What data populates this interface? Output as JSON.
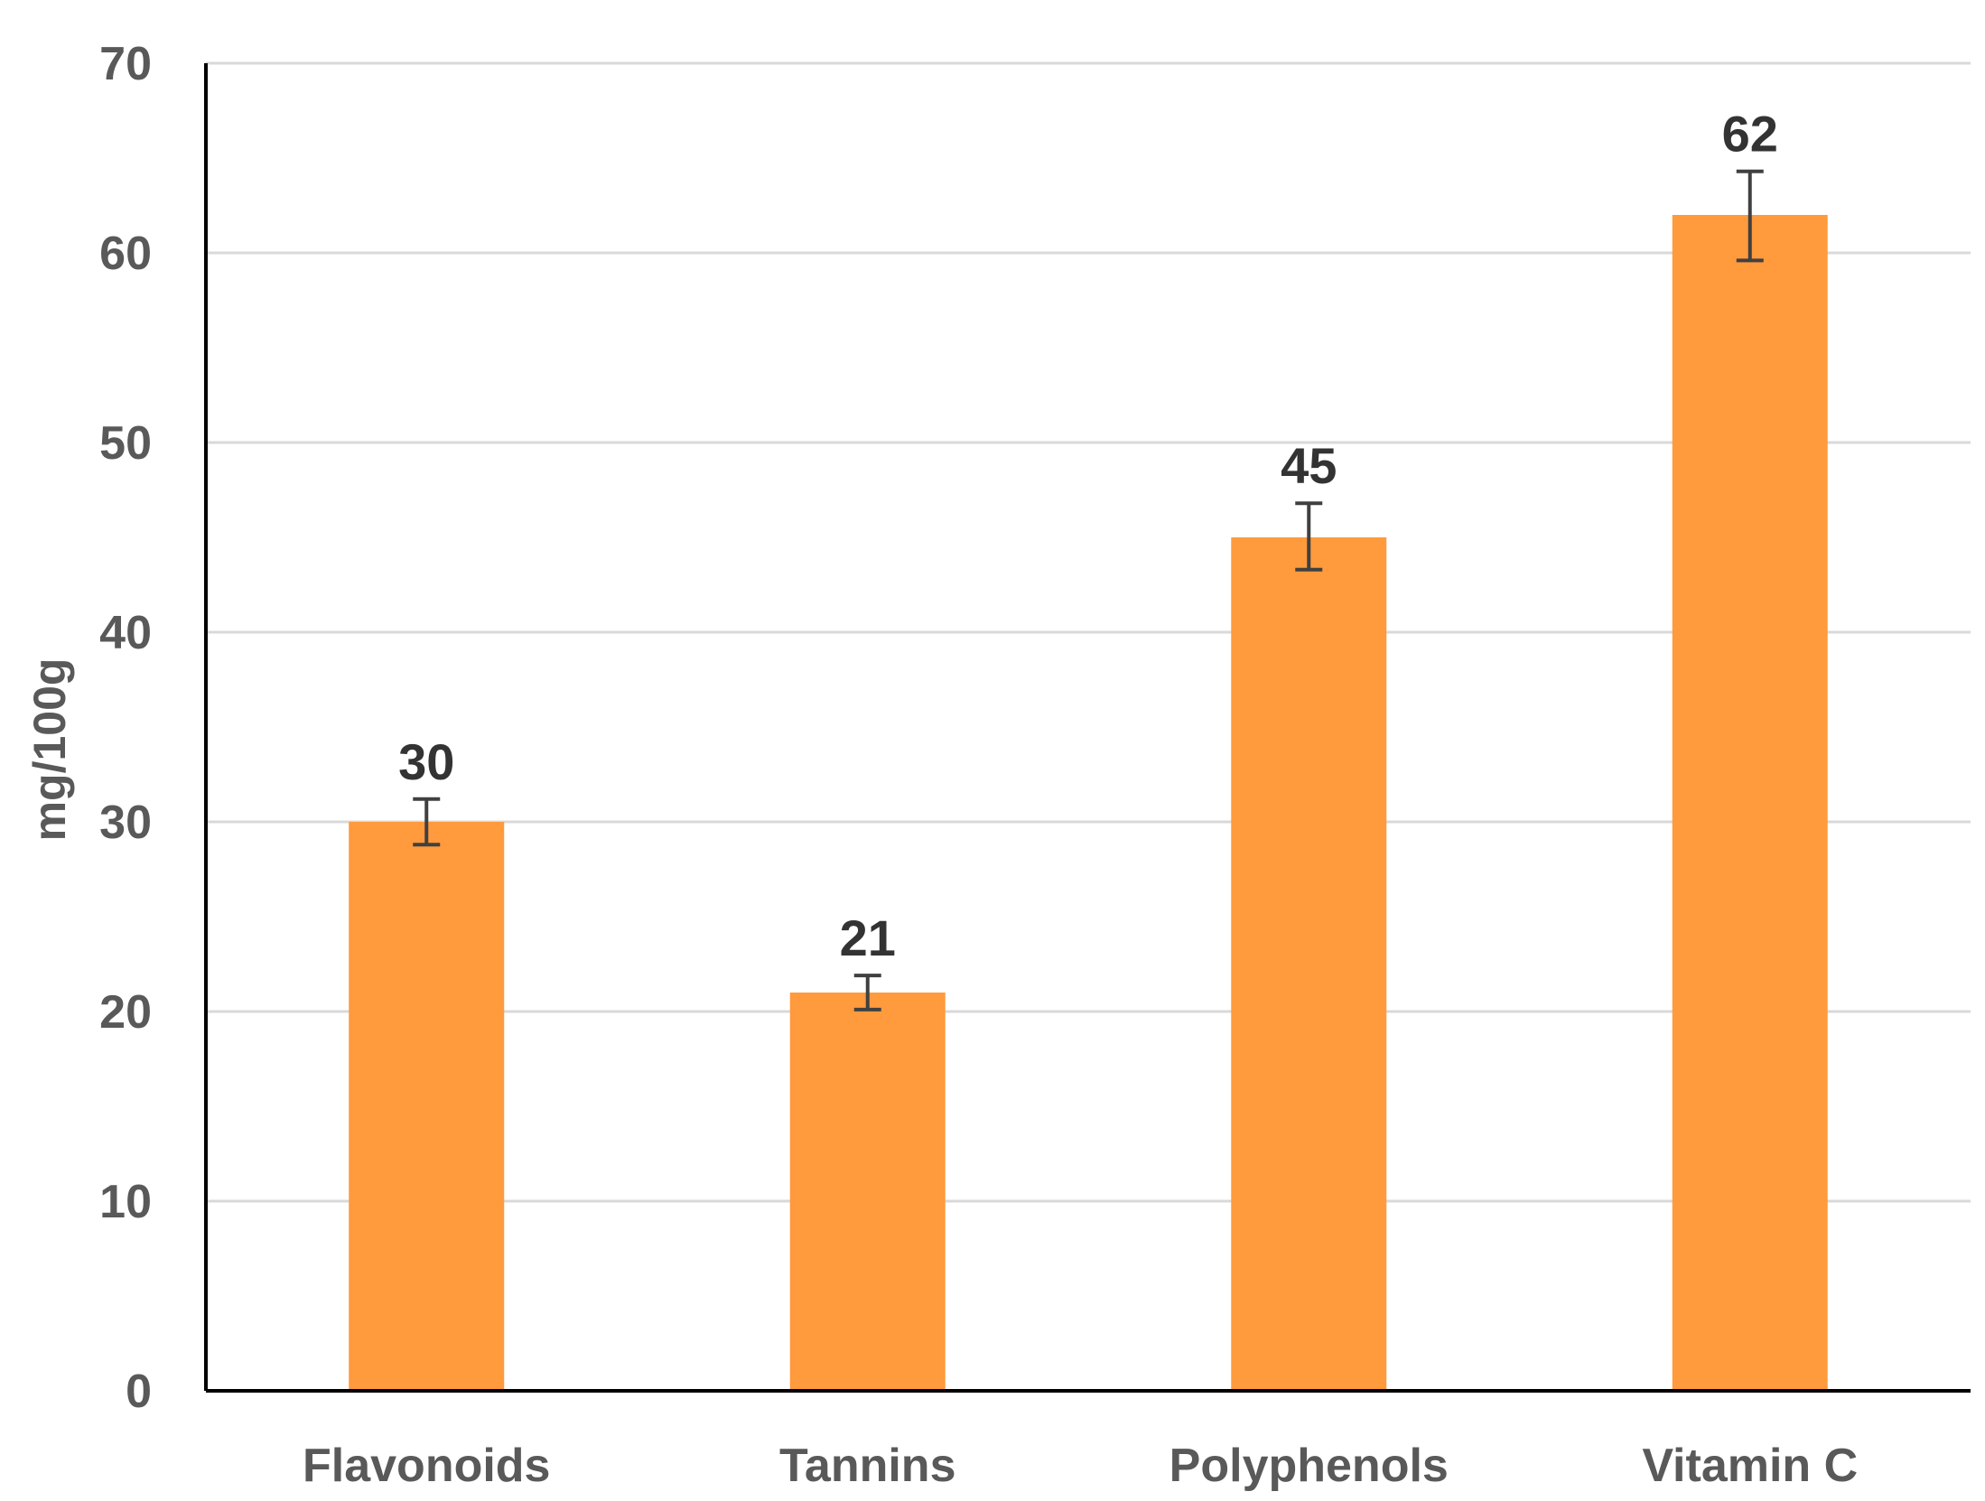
{
  "chart_data": {
    "type": "bar",
    "title": "",
    "xlabel": "",
    "ylabel": "mg/100g",
    "ylim": [
      0,
      70
    ],
    "yticks": [
      0,
      10,
      20,
      30,
      40,
      50,
      60,
      70
    ],
    "grid": true,
    "legend": "none",
    "categories": [
      "Flavonoids",
      "Tannins",
      "Polyphenols",
      "Vitamin C"
    ],
    "values": [
      30,
      21,
      45,
      62
    ],
    "data_labels": [
      "30",
      "21",
      "45",
      "62"
    ],
    "error_low": [
      28.8,
      20.1,
      43.3,
      59.6
    ],
    "error_high": [
      31.2,
      21.9,
      46.8,
      64.3
    ],
    "colors": {
      "bar": "#FF9A3D",
      "grid": "#D9D9D9",
      "axis": "#000000",
      "tick_text": "#595959",
      "label_text": "#333333",
      "error_bar": "#404040"
    }
  }
}
